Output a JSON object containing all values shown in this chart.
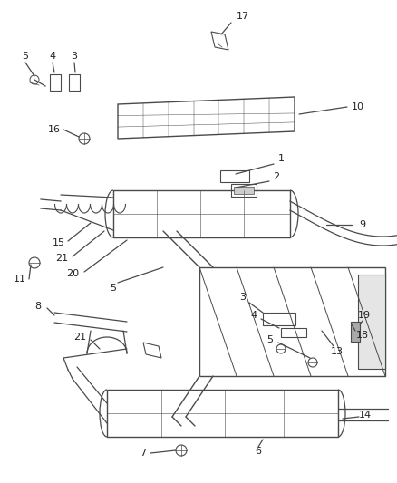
{
  "bg_color": "#ffffff",
  "lc": "#4a4a4a",
  "lw": 0.9,
  "figsize": [
    4.38,
    5.33
  ],
  "dpi": 100
}
